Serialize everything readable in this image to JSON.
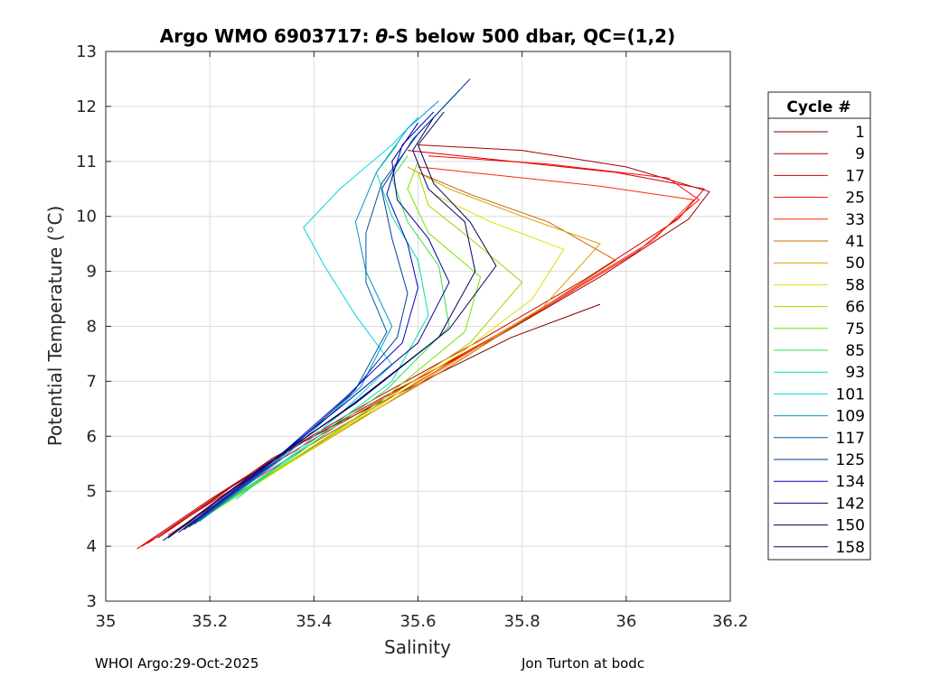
{
  "chart_data": {
    "type": "line",
    "title_prefix": "Argo WMO 6903717: ",
    "title_theta": "θ",
    "title_suffix": "-S below 500 dbar,  QC=(1,2)",
    "xlabel": "Salinity",
    "ylabel": "Potential Temperature (°C)",
    "xlim": [
      35,
      36.2
    ],
    "ylim": [
      3,
      13
    ],
    "xticks": [
      35,
      35.2,
      35.4,
      35.6,
      35.8,
      36,
      36.2
    ],
    "xtick_labels": [
      "35",
      "35.2",
      "35.4",
      "35.6",
      "35.8",
      "36",
      "36.2"
    ],
    "yticks": [
      3,
      4,
      5,
      6,
      7,
      8,
      9,
      10,
      11,
      12,
      13
    ],
    "ytick_labels": [
      "3",
      "4",
      "5",
      "6",
      "7",
      "8",
      "9",
      "10",
      "11",
      "12",
      "13"
    ],
    "grid": true,
    "legend": {
      "title": "Cycle #",
      "position": "right-outside",
      "entries": [
        "1",
        "9",
        "17",
        "25",
        "33",
        "41",
        "50",
        "58",
        "66",
        "75",
        "85",
        "93",
        "101",
        "109",
        "117",
        "125",
        "134",
        "142",
        "150",
        "158"
      ],
      "colors": [
        "#7f0000",
        "#a50000",
        "#d20000",
        "#ff0000",
        "#ff2a00",
        "#c86400",
        "#d7a000",
        "#e1e100",
        "#a5d200",
        "#78e100",
        "#32e14b",
        "#00e1a5",
        "#00d7e1",
        "#0096d2",
        "#005aa0",
        "#003c96",
        "#0000c8",
        "#000096",
        "#000064",
        "#00005a"
      ]
    },
    "series": [
      {
        "name": "1",
        "color": "#7f0000",
        "values": [
          [
            35.1,
            4.15
          ],
          [
            35.2,
            4.8
          ],
          [
            35.32,
            5.6
          ],
          [
            35.45,
            6.25
          ],
          [
            35.62,
            7.05
          ],
          [
            35.78,
            7.8
          ],
          [
            35.95,
            8.4
          ]
        ]
      },
      {
        "name": "9",
        "color": "#a50000",
        "values": [
          [
            35.08,
            4.05
          ],
          [
            35.22,
            4.95
          ],
          [
            35.38,
            5.9
          ],
          [
            35.55,
            6.8
          ],
          [
            35.75,
            7.8
          ],
          [
            35.95,
            8.9
          ],
          [
            36.12,
            9.95
          ],
          [
            36.16,
            10.45
          ],
          [
            36.0,
            10.9
          ],
          [
            35.8,
            11.2
          ],
          [
            35.6,
            11.3
          ]
        ]
      },
      {
        "name": "17",
        "color": "#d20000",
        "values": [
          [
            35.06,
            3.95
          ],
          [
            35.2,
            4.85
          ],
          [
            35.35,
            5.75
          ],
          [
            35.52,
            6.7
          ],
          [
            35.72,
            7.75
          ],
          [
            35.92,
            8.85
          ],
          [
            36.1,
            9.95
          ],
          [
            36.15,
            10.5
          ],
          [
            35.98,
            10.8
          ],
          [
            35.78,
            11.0
          ],
          [
            35.58,
            11.2
          ]
        ]
      },
      {
        "name": "25",
        "color": "#ff0000",
        "values": [
          [
            35.07,
            4.0
          ],
          [
            35.22,
            4.9
          ],
          [
            35.4,
            5.95
          ],
          [
            35.6,
            7.05
          ],
          [
            35.82,
            8.2
          ],
          [
            36.02,
            9.35
          ],
          [
            36.14,
            10.3
          ],
          [
            36.08,
            10.7
          ],
          [
            35.85,
            10.95
          ],
          [
            35.62,
            11.1
          ]
        ]
      },
      {
        "name": "33",
        "color": "#ff2a00",
        "values": [
          [
            35.12,
            4.2
          ],
          [
            35.25,
            5.0
          ],
          [
            35.42,
            6.0
          ],
          [
            35.62,
            7.1
          ],
          [
            35.85,
            8.4
          ],
          [
            36.05,
            9.55
          ],
          [
            36.13,
            10.3
          ],
          [
            35.95,
            10.55
          ],
          [
            35.75,
            10.75
          ],
          [
            35.6,
            10.9
          ]
        ]
      },
      {
        "name": "41",
        "color": "#c86400",
        "values": [
          [
            35.13,
            4.25
          ],
          [
            35.27,
            5.05
          ],
          [
            35.45,
            6.1
          ],
          [
            35.65,
            7.2
          ],
          [
            35.85,
            8.4
          ],
          [
            35.98,
            9.2
          ],
          [
            35.85,
            9.9
          ],
          [
            35.7,
            10.4
          ],
          [
            35.6,
            10.8
          ]
        ]
      },
      {
        "name": "50",
        "color": "#d7a000",
        "values": [
          [
            35.14,
            4.3
          ],
          [
            35.3,
            5.2
          ],
          [
            35.48,
            6.25
          ],
          [
            35.66,
            7.3
          ],
          [
            35.84,
            8.35
          ],
          [
            35.95,
            9.5
          ],
          [
            35.8,
            10.0
          ],
          [
            35.66,
            10.5
          ],
          [
            35.58,
            10.9
          ]
        ]
      },
      {
        "name": "58",
        "color": "#e1e100",
        "values": [
          [
            35.15,
            4.3
          ],
          [
            35.31,
            5.25
          ],
          [
            35.5,
            6.4
          ],
          [
            35.68,
            7.5
          ],
          [
            35.82,
            8.5
          ],
          [
            35.88,
            9.4
          ],
          [
            35.74,
            9.9
          ],
          [
            35.63,
            10.4
          ]
        ]
      },
      {
        "name": "66",
        "color": "#a5d200",
        "values": [
          [
            35.15,
            4.35
          ],
          [
            35.33,
            5.4
          ],
          [
            35.52,
            6.55
          ],
          [
            35.7,
            7.7
          ],
          [
            35.8,
            8.8
          ],
          [
            35.7,
            9.6
          ],
          [
            35.62,
            10.2
          ],
          [
            35.6,
            10.8
          ]
        ]
      },
      {
        "name": "75",
        "color": "#78e100",
        "values": [
          [
            35.16,
            4.35
          ],
          [
            35.34,
            5.45
          ],
          [
            35.53,
            6.65
          ],
          [
            35.69,
            7.9
          ],
          [
            35.72,
            8.9
          ],
          [
            35.62,
            9.7
          ],
          [
            35.58,
            10.5
          ],
          [
            35.6,
            11.0
          ]
        ]
      },
      {
        "name": "85",
        "color": "#32e14b",
        "values": [
          [
            35.16,
            4.4
          ],
          [
            35.35,
            5.55
          ],
          [
            35.54,
            6.85
          ],
          [
            35.66,
            8.0
          ],
          [
            35.64,
            9.1
          ],
          [
            35.58,
            9.9
          ],
          [
            35.55,
            10.7
          ],
          [
            35.58,
            11.1
          ]
        ]
      },
      {
        "name": "93",
        "color": "#00e1a5",
        "values": [
          [
            35.17,
            4.4
          ],
          [
            35.36,
            5.65
          ],
          [
            35.55,
            7.0
          ],
          [
            35.62,
            8.2
          ],
          [
            35.6,
            9.2
          ],
          [
            35.55,
            10.0
          ],
          [
            35.52,
            10.8
          ],
          [
            35.56,
            11.3
          ]
        ]
      },
      {
        "name": "101",
        "color": "#00d7e1",
        "values": [
          [
            35.25,
            4.85
          ],
          [
            35.35,
            5.6
          ],
          [
            35.45,
            6.4
          ],
          [
            35.55,
            7.3
          ],
          [
            35.48,
            8.2
          ],
          [
            35.42,
            9.1
          ],
          [
            35.38,
            9.8
          ],
          [
            35.45,
            10.5
          ],
          [
            35.55,
            11.3
          ],
          [
            35.6,
            11.8
          ]
        ]
      },
      {
        "name": "109",
        "color": "#0096d2",
        "values": [
          [
            35.18,
            4.45
          ],
          [
            35.34,
            5.6
          ],
          [
            35.49,
            6.9
          ],
          [
            35.55,
            8.0
          ],
          [
            35.5,
            9.0
          ],
          [
            35.48,
            9.9
          ],
          [
            35.52,
            10.8
          ],
          [
            35.58,
            11.6
          ],
          [
            35.64,
            12.1
          ]
        ]
      },
      {
        "name": "117",
        "color": "#005aa0",
        "values": [
          [
            35.17,
            4.4
          ],
          [
            35.33,
            5.55
          ],
          [
            35.48,
            6.85
          ],
          [
            35.54,
            7.9
          ],
          [
            35.5,
            8.8
          ],
          [
            35.5,
            9.7
          ],
          [
            35.53,
            10.6
          ],
          [
            35.6,
            11.5
          ],
          [
            35.68,
            12.3
          ]
        ]
      },
      {
        "name": "125",
        "color": "#003c96",
        "values": [
          [
            35.16,
            4.35
          ],
          [
            35.32,
            5.5
          ],
          [
            35.47,
            6.75
          ],
          [
            35.56,
            7.8
          ],
          [
            35.58,
            8.6
          ],
          [
            35.55,
            9.6
          ],
          [
            35.53,
            10.5
          ],
          [
            35.59,
            11.4
          ],
          [
            35.7,
            12.5
          ]
        ]
      },
      {
        "name": "134",
        "color": "#0000c8",
        "values": [
          [
            35.15,
            4.3
          ],
          [
            35.31,
            5.45
          ],
          [
            35.46,
            6.7
          ],
          [
            35.57,
            7.7
          ],
          [
            35.6,
            8.7
          ],
          [
            35.58,
            9.5
          ],
          [
            35.54,
            10.4
          ],
          [
            35.57,
            11.3
          ],
          [
            35.63,
            11.9
          ]
        ]
      },
      {
        "name": "142",
        "color": "#000096",
        "values": [
          [
            35.14,
            4.25
          ],
          [
            35.3,
            5.4
          ],
          [
            35.46,
            6.6
          ],
          [
            35.6,
            7.7
          ],
          [
            35.66,
            8.8
          ],
          [
            35.62,
            9.6
          ],
          [
            35.56,
            10.3
          ],
          [
            35.55,
            11.0
          ],
          [
            35.6,
            11.7
          ]
        ]
      },
      {
        "name": "150",
        "color": "#000064",
        "values": [
          [
            35.12,
            4.15
          ],
          [
            35.29,
            5.35
          ],
          [
            35.47,
            6.55
          ],
          [
            35.64,
            7.8
          ],
          [
            35.71,
            9.0
          ],
          [
            35.69,
            9.9
          ],
          [
            35.62,
            10.5
          ],
          [
            35.59,
            11.2
          ],
          [
            35.63,
            11.8
          ]
        ]
      },
      {
        "name": "158",
        "color": "#00005a",
        "values": [
          [
            35.11,
            4.1
          ],
          [
            35.28,
            5.3
          ],
          [
            35.48,
            6.6
          ],
          [
            35.66,
            7.95
          ],
          [
            35.75,
            9.1
          ],
          [
            35.7,
            9.9
          ],
          [
            35.63,
            10.6
          ],
          [
            35.6,
            11.3
          ],
          [
            35.65,
            11.9
          ]
        ]
      }
    ]
  },
  "footer": {
    "left": "WHOI Argo:29-Oct-2025",
    "right": "Jon Turton at bodc"
  }
}
